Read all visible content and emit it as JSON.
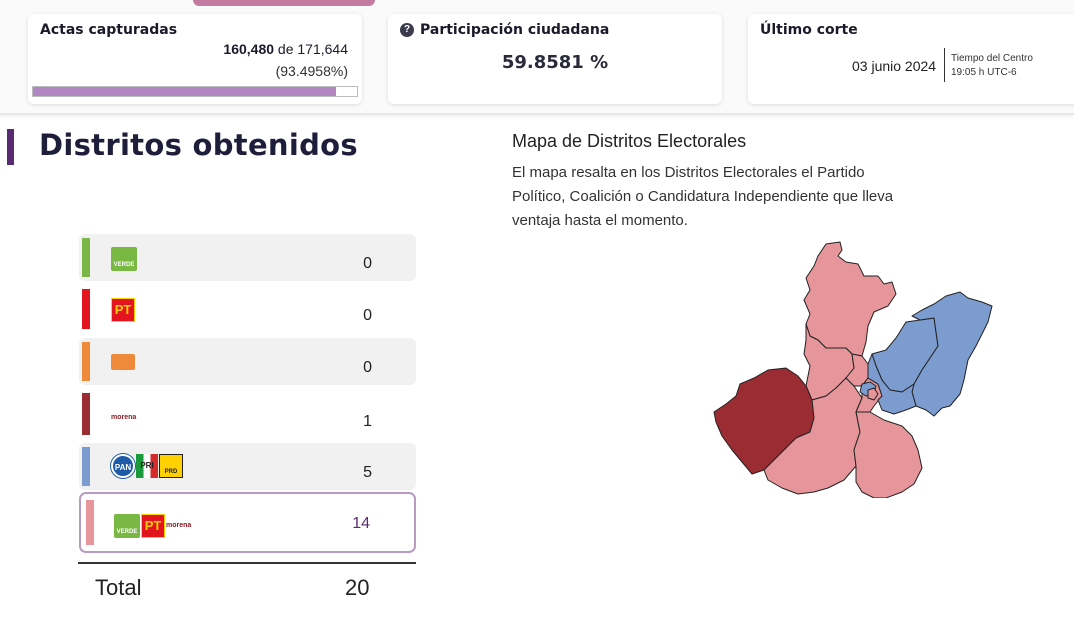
{
  "header": {
    "actas": {
      "title": "Actas capturadas",
      "captured": "160,480",
      "of_label": "de 171,644",
      "percent_text": "(93.4958%)",
      "progress": 0.934958
    },
    "participacion": {
      "title": "Participación ciudadana",
      "value": "59.8581 %"
    },
    "corte": {
      "title": "Último corte",
      "date": "03 junio 2024",
      "zone_label": "Tiempo del Centro",
      "time": "19:05 h UTC-6"
    }
  },
  "section": {
    "title": "Distritos obtenidos"
  },
  "map_info": {
    "title": "Mapa de Distritos Electorales",
    "description": "El mapa resalta en los Distritos Electorales el Partido Político, Coalición o Candidatura Independiente que lleva ventaja hasta el momento."
  },
  "results": [
    {
      "party": "PVEM",
      "logo_text": "VERDE",
      "value": "0",
      "color": "#7ab648",
      "icon": "pvem-logo-icon"
    },
    {
      "party": "PT",
      "logo_text": "PT",
      "value": "0",
      "color": "#e2141e",
      "icon": "pt-logo-icon"
    },
    {
      "party": "MC",
      "logo_text": "",
      "value": "0",
      "color": "#f08a3b",
      "icon": "mc-logo-icon"
    },
    {
      "party": "MORENA",
      "logo_text": "morena",
      "value": "1",
      "color": "#9b2c34",
      "icon": "morena-logo-icon"
    },
    {
      "party": "PAN-PRI-PRD",
      "logo_text": "PAN PRI PRD",
      "value": "5",
      "color": "#7c9ccf",
      "icon": "pan-pri-prd-logo-icon"
    },
    {
      "party": "PVEM-PT-MORENA",
      "logo_text": "VERDE PT morena",
      "value": "14",
      "color": "#e6959a",
      "icon": "pvem-pt-morena-logo-icon"
    }
  ],
  "total": {
    "label": "Total",
    "value": "20"
  },
  "colors": {
    "accent": "#5a2a72",
    "progress_fill": "#b286c0",
    "map_morena": "#9b2c34",
    "map_coalition_pri": "#7c9ccf",
    "map_coalition_morena": "#e6959a"
  }
}
